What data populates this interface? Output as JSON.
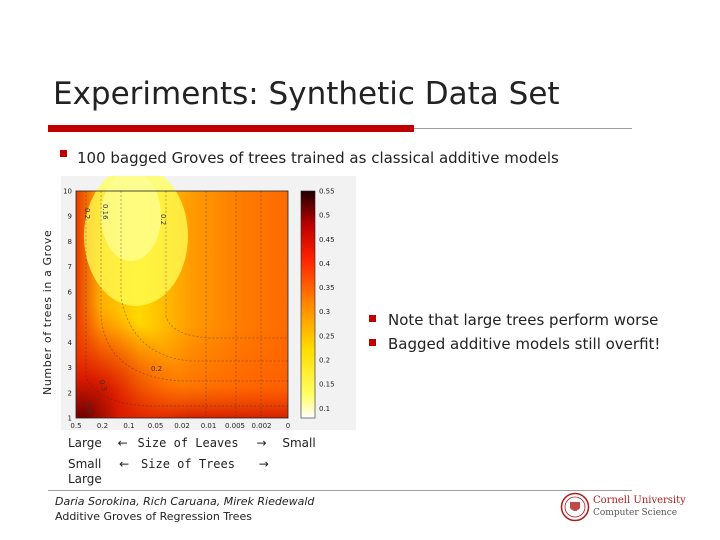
{
  "slide": {
    "title": "Experiments: Synthetic Data Set",
    "bullets": [
      "100 bagged Groves of trees trained  as classical additive models"
    ],
    "side_bullets": [
      "Note that large trees perform worse",
      "Bagged additive models still overfit!"
    ],
    "y_axis_note": "Number of trees in a Grove",
    "x_axis_note_1": {
      "left": "Large",
      "arrow_left": "←",
      "mid": "Size of Leaves",
      "arrow_right": "→",
      "right": "Small"
    },
    "x_axis_note_2": {
      "left": "Small",
      "arrow_left": "←",
      "mid": "Size of Trees",
      "arrow_right": "→",
      "right": "Large"
    },
    "footer_authors": "Daria Sorokina, Rich Caruana, Mirek Riedewald",
    "footer_title": "Additive Groves of Regression Trees",
    "logo_line1": "Cornell University",
    "logo_line2": "Computer Science",
    "colors": {
      "accent": "#c00000",
      "rule": "#9e9e9e"
    }
  },
  "chart_data": {
    "type": "heatmap",
    "colormap": "hot",
    "x_tick_labels": [
      "0.5",
      "0.2",
      "0.1",
      "0.05",
      "0.02",
      "0.01",
      "0.005",
      "0.002",
      "0"
    ],
    "y_tick_labels": [
      "1",
      "2",
      "3",
      "4",
      "5",
      "6",
      "7",
      "8",
      "9",
      "10"
    ],
    "yrange": [
      1,
      10
    ],
    "colorbar_ticks": [
      "0.1",
      "0.15",
      "0.2",
      "0.25",
      "0.3",
      "0.35",
      "0.4",
      "0.45",
      "0.5",
      "0.55"
    ],
    "colorbar_range": [
      0.08,
      0.55
    ],
    "contour_labels": [
      "0.2",
      "0.16",
      "0.2",
      "0.2",
      "0.3",
      "0.4"
    ]
  }
}
